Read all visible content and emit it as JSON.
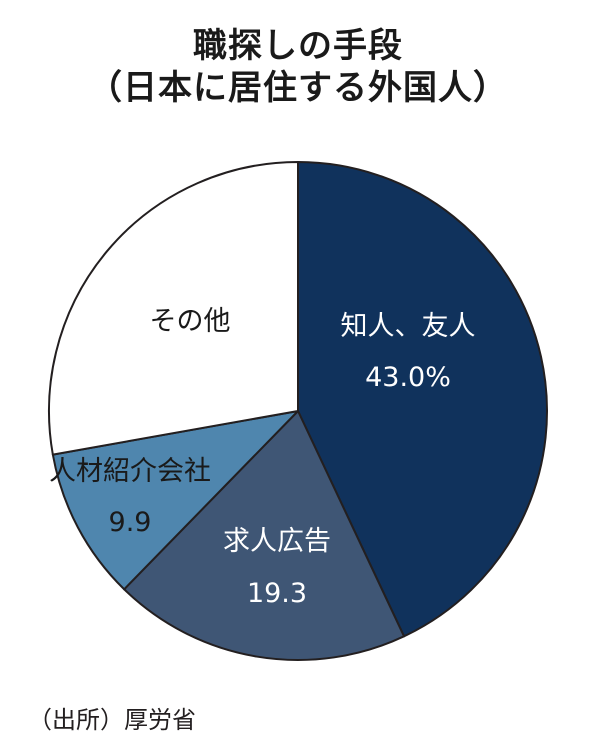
{
  "title_line1": "職探しの手段",
  "title_line2": "（日本に居住する外国人）",
  "source": "（出所）厚労省",
  "chart_data": {
    "type": "pie",
    "title": "職探しの手段（日本に居住する外国人）",
    "slices": [
      {
        "label": "知人、友人",
        "value_label": "43.0%",
        "value": 43.0,
        "color": "#10325c",
        "text_color": "#ffffff"
      },
      {
        "label": "求人広告",
        "value_label": "19.3",
        "value": 19.3,
        "color": "#3f5675",
        "text_color": "#ffffff"
      },
      {
        "label": "人材紹介会社",
        "value_label": "9.9",
        "value": 9.9,
        "color": "#4f86ae",
        "text_color": "#1a1a1a"
      },
      {
        "label": "その他",
        "value_label": "",
        "value": 27.8,
        "color": "#ffffff",
        "text_color": "#1a1a1a"
      }
    ],
    "start_angle": "12 o'clock",
    "direction": "clockwise"
  }
}
